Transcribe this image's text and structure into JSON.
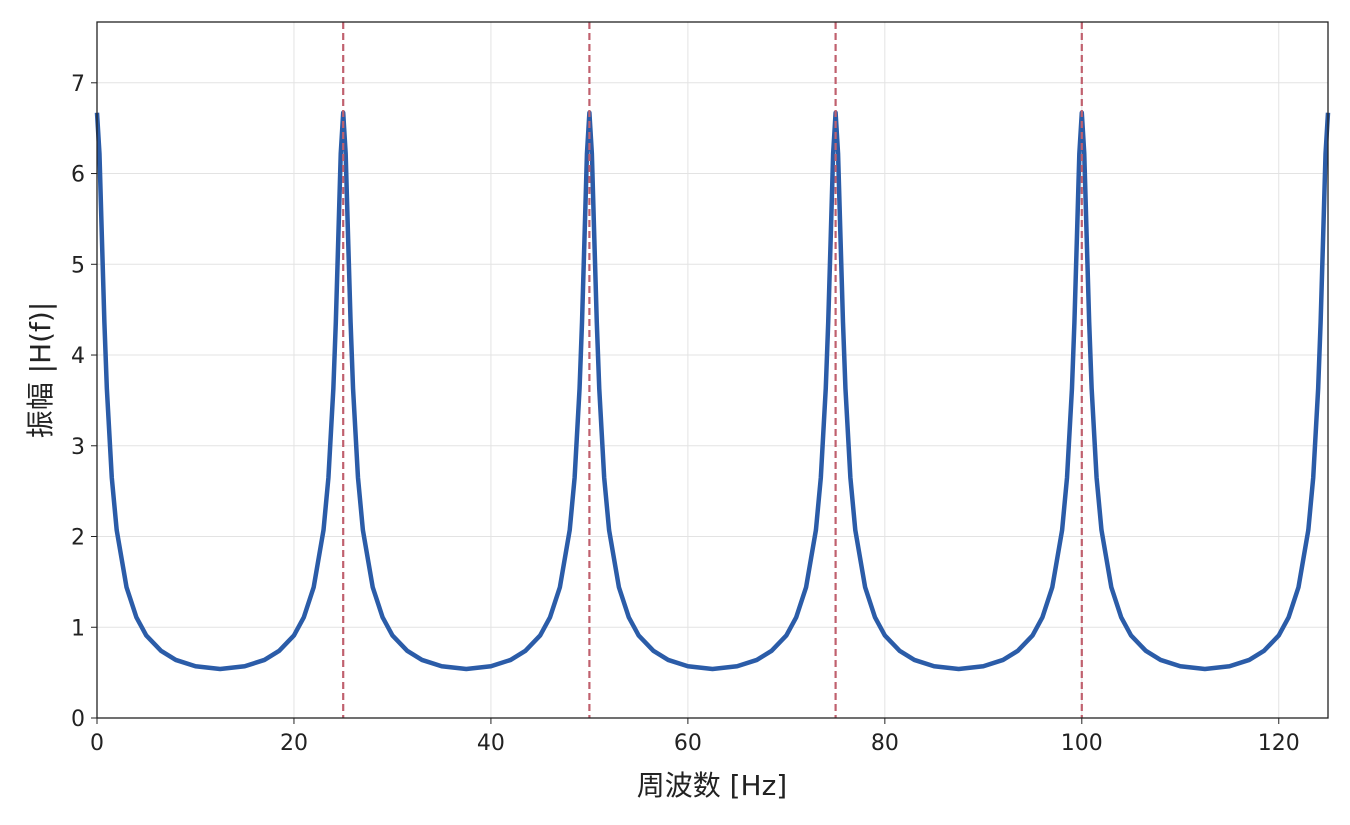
{
  "chart_data": {
    "type": "line",
    "xlabel": "周波数 [Hz]",
    "ylabel": "振幅 |H(f)|",
    "xlim": [
      0,
      125
    ],
    "ylim": [
      0,
      7.67
    ],
    "xticks": [
      0,
      20,
      40,
      60,
      80,
      100,
      120
    ],
    "yticks": [
      0,
      1,
      2,
      3,
      4,
      5,
      6,
      7
    ],
    "grid": true,
    "x": [
      0,
      0.25,
      0.5,
      0.75,
      1,
      1.5,
      2,
      3,
      4,
      5,
      6.5,
      8,
      10,
      12.5,
      15,
      17,
      18.5,
      20,
      21,
      22,
      23,
      23.5,
      24,
      24.25,
      24.5,
      24.75,
      25,
      25.25,
      25.5,
      25.75,
      26,
      26.5,
      27,
      28,
      29,
      30,
      31.5,
      33,
      35,
      37.5,
      40,
      42,
      43.5,
      45,
      46,
      47,
      48,
      48.5,
      49,
      49.25,
      49.5,
      49.75,
      50,
      50.25,
      50.5,
      50.75,
      51,
      51.5,
      52,
      53,
      54,
      55,
      56.5,
      58,
      60,
      62.5,
      65,
      67,
      68.5,
      70,
      71,
      72,
      73,
      73.5,
      74,
      74.25,
      74.5,
      74.75,
      75,
      75.25,
      75.5,
      75.75,
      76,
      76.5,
      77,
      78,
      79,
      80,
      81.5,
      83,
      85,
      87.5,
      90,
      92,
      93.5,
      95,
      96,
      97,
      98,
      98.5,
      99,
      99.25,
      99.5,
      99.75,
      100,
      100.25,
      100.5,
      100.75,
      101,
      101.5,
      102,
      103,
      104,
      105,
      106.5,
      108,
      110,
      112.5,
      115,
      117,
      118.5,
      120,
      121,
      122,
      123,
      123.5,
      124,
      124.25,
      124.5,
      124.75,
      125
    ],
    "series": [
      {
        "color": "#2b5ca8",
        "values": [
          6.67,
          6.22,
          5.28,
          4.36,
          3.63,
          2.65,
          2.07,
          1.44,
          1.11,
          0.91,
          0.74,
          0.64,
          0.57,
          0.54,
          0.57,
          0.64,
          0.74,
          0.91,
          1.11,
          1.44,
          2.07,
          2.65,
          3.63,
          4.36,
          5.28,
          6.22,
          6.67,
          6.22,
          5.28,
          4.36,
          3.63,
          2.65,
          2.07,
          1.44,
          1.11,
          0.91,
          0.74,
          0.64,
          0.57,
          0.54,
          0.57,
          0.64,
          0.74,
          0.91,
          1.11,
          1.44,
          2.07,
          2.65,
          3.63,
          4.36,
          5.28,
          6.22,
          6.67,
          6.22,
          5.28,
          4.36,
          3.63,
          2.65,
          2.07,
          1.44,
          1.11,
          0.91,
          0.74,
          0.64,
          0.57,
          0.54,
          0.57,
          0.64,
          0.74,
          0.91,
          1.11,
          1.44,
          2.07,
          2.65,
          3.63,
          4.36,
          5.28,
          6.22,
          6.67,
          6.22,
          5.28,
          4.36,
          3.63,
          2.65,
          2.07,
          1.44,
          1.11,
          0.91,
          0.74,
          0.64,
          0.57,
          0.54,
          0.57,
          0.64,
          0.74,
          0.91,
          1.11,
          1.44,
          2.07,
          2.65,
          3.63,
          4.36,
          5.28,
          6.22,
          6.67,
          6.22,
          5.28,
          4.36,
          3.63,
          2.65,
          2.07,
          1.44,
          1.11,
          0.91,
          0.74,
          0.64,
          0.57,
          0.54,
          0.57,
          0.64,
          0.74,
          0.91,
          1.11,
          1.44,
          2.07,
          2.65,
          3.63,
          4.36,
          5.28,
          6.22,
          6.67
        ]
      }
    ],
    "vlines": {
      "color": "#c0606e",
      "values": [
        25,
        50,
        75,
        100
      ]
    }
  }
}
